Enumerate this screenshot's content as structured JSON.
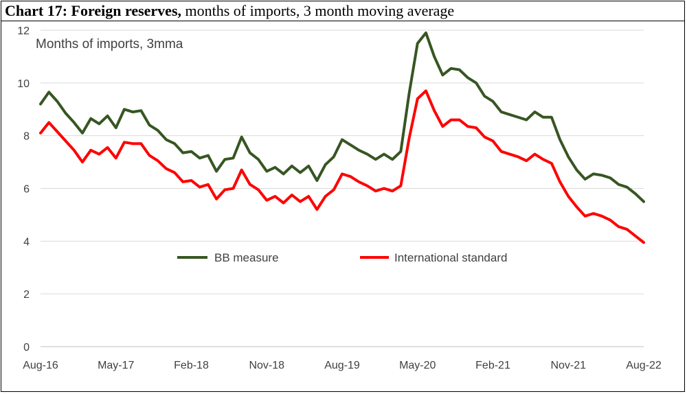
{
  "title": {
    "bold": "Chart 17: Foreign reserves,",
    "rest": " months of imports, 3 month moving average"
  },
  "chart_data": {
    "type": "line",
    "annotation": "Months of imports, 3mma",
    "ylim": [
      0,
      12
    ],
    "yticks": [
      "0",
      "2",
      "4",
      "6",
      "8",
      "10",
      "12"
    ],
    "xtick_labels": [
      "Aug-16",
      "May-17",
      "Feb-18",
      "Nov-18",
      "Aug-19",
      "May-20",
      "Feb-21",
      "Nov-21",
      "Aug-22"
    ],
    "x": [
      "Aug-16",
      "Sep-16",
      "Oct-16",
      "Nov-16",
      "Dec-16",
      "Jan-17",
      "Feb-17",
      "Mar-17",
      "Apr-17",
      "May-17",
      "Jun-17",
      "Jul-17",
      "Aug-17",
      "Sep-17",
      "Oct-17",
      "Nov-17",
      "Dec-17",
      "Jan-18",
      "Feb-18",
      "Mar-18",
      "Apr-18",
      "May-18",
      "Jun-18",
      "Jul-18",
      "Aug-18",
      "Sep-18",
      "Oct-18",
      "Nov-18",
      "Dec-18",
      "Jan-19",
      "Feb-19",
      "Mar-19",
      "Apr-19",
      "May-19",
      "Jun-19",
      "Jul-19",
      "Aug-19",
      "Sep-19",
      "Oct-19",
      "Nov-19",
      "Dec-19",
      "Jan-20",
      "Feb-20",
      "Mar-20",
      "Apr-20",
      "May-20",
      "Jun-20",
      "Jul-20",
      "Aug-20",
      "Sep-20",
      "Oct-20",
      "Nov-20",
      "Dec-20",
      "Jan-21",
      "Feb-21",
      "Mar-21",
      "Apr-21",
      "May-21",
      "Jun-21",
      "Jul-21",
      "Aug-21",
      "Sep-21",
      "Oct-21",
      "Nov-21",
      "Dec-21",
      "Jan-22",
      "Feb-22",
      "Mar-22",
      "Apr-22",
      "May-22",
      "Jun-22",
      "Jul-22",
      "Aug-22"
    ],
    "legend_position": "center",
    "grid": true,
    "series": [
      {
        "name": "BB measure",
        "color": "#375623",
        "values": [
          9.2,
          9.65,
          9.3,
          8.85,
          8.5,
          8.1,
          8.65,
          8.45,
          8.75,
          8.3,
          9.0,
          8.9,
          8.95,
          8.4,
          8.2,
          7.85,
          7.7,
          7.35,
          7.4,
          7.15,
          7.25,
          6.65,
          7.1,
          7.15,
          7.95,
          7.35,
          7.1,
          6.65,
          6.8,
          6.55,
          6.85,
          6.6,
          6.85,
          6.3,
          6.9,
          7.2,
          7.85,
          7.65,
          7.45,
          7.3,
          7.1,
          7.3,
          7.1,
          7.4,
          9.6,
          11.5,
          11.9,
          11.0,
          10.3,
          10.55,
          10.5,
          10.2,
          10.0,
          9.5,
          9.3,
          8.9,
          8.8,
          8.7,
          8.6,
          8.9,
          8.7,
          8.7,
          7.85,
          7.2,
          6.7,
          6.35,
          6.55,
          6.5,
          6.4,
          6.15,
          6.05,
          5.8,
          5.5
        ]
      },
      {
        "name": "International standard",
        "color": "#ff0000",
        "values": [
          8.1,
          8.5,
          8.15,
          7.8,
          7.45,
          7.0,
          7.45,
          7.3,
          7.55,
          7.15,
          7.75,
          7.7,
          7.7,
          7.25,
          7.05,
          6.75,
          6.6,
          6.25,
          6.3,
          6.05,
          6.15,
          5.6,
          5.95,
          6.0,
          6.7,
          6.15,
          5.95,
          5.55,
          5.7,
          5.45,
          5.75,
          5.5,
          5.7,
          5.2,
          5.7,
          5.95,
          6.55,
          6.45,
          6.25,
          6.1,
          5.9,
          6.0,
          5.9,
          6.1,
          7.9,
          9.4,
          9.7,
          8.95,
          8.35,
          8.6,
          8.6,
          8.35,
          8.3,
          7.95,
          7.8,
          7.4,
          7.3,
          7.2,
          7.05,
          7.3,
          7.1,
          6.95,
          6.25,
          5.7,
          5.3,
          4.95,
          5.05,
          4.95,
          4.8,
          4.55,
          4.45,
          4.2,
          3.95
        ]
      }
    ]
  }
}
